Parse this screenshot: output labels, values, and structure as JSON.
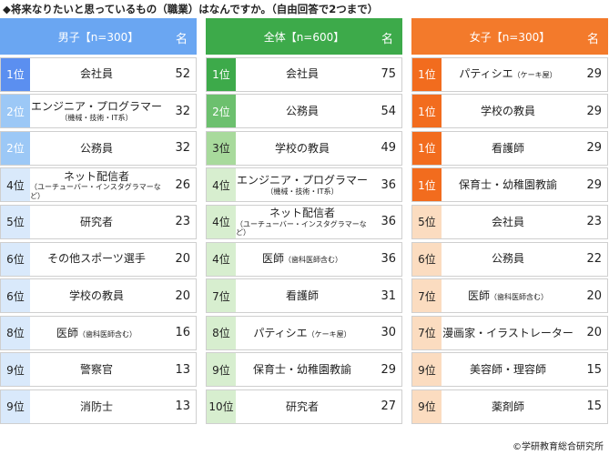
{
  "title": "◆将来なりたいと思っているもの（職業）はなんですか。（自由回答で2つまで）",
  "footer": "©学研教育総合研究所",
  "columns": [
    {
      "header": "男子【n=300】",
      "unit": "名",
      "header_color": "#6aa6f2",
      "rank_colors": [
        "#5b8ff0",
        "#9cc8f6",
        "#b9d9f8",
        "#d9e9fb"
      ],
      "rows": [
        {
          "rank": "1位",
          "name": "会社員",
          "count": 52
        },
        {
          "rank": "2位",
          "name": "エンジニア・プログラマー",
          "note": "（機械・技術・IT系）",
          "note_below": true,
          "count": 32
        },
        {
          "rank": "2位",
          "name": "公務員",
          "count": 32
        },
        {
          "rank": "4位",
          "name": "ネット配信者",
          "note": "（ユーチューバー・インスタグラマーなど）",
          "note_below": true,
          "count": 26
        },
        {
          "rank": "5位",
          "name": "研究者",
          "count": 23
        },
        {
          "rank": "6位",
          "name": "その他スポーツ選手",
          "count": 20
        },
        {
          "rank": "6位",
          "name": "学校の教員",
          "count": 20
        },
        {
          "rank": "8位",
          "name": "医師",
          "note": "（歯科医師含む）",
          "note_below": false,
          "count": 16
        },
        {
          "rank": "9位",
          "name": "警察官",
          "count": 13
        },
        {
          "rank": "9位",
          "name": "消防士",
          "count": 13
        }
      ]
    },
    {
      "header": "全体【n=600】",
      "unit": "名",
      "header_color": "#3daa4a",
      "rank_colors": [
        "#3daa4a",
        "#6cc06e",
        "#a8da9c",
        "#d7eecf"
      ],
      "rows": [
        {
          "rank": "1位",
          "name": "会社員",
          "count": 75
        },
        {
          "rank": "2位",
          "name": "公務員",
          "count": 54
        },
        {
          "rank": "3位",
          "name": "学校の教員",
          "count": 49
        },
        {
          "rank": "4位",
          "name": "エンジニア・プログラマー",
          "note": "（機械・技術・IT系）",
          "note_below": true,
          "count": 36
        },
        {
          "rank": "4位",
          "name": "ネット配信者",
          "note": "（ユーチューバー・インスタグラマーなど）",
          "note_below": true,
          "count": 36
        },
        {
          "rank": "4位",
          "name": "医師",
          "note": "（歯科医師含む）",
          "note_below": false,
          "count": 36
        },
        {
          "rank": "7位",
          "name": "看護師",
          "count": 31
        },
        {
          "rank": "8位",
          "name": "パティシエ",
          "note": "（ケーキ屋）",
          "note_below": false,
          "count": 30
        },
        {
          "rank": "9位",
          "name": "保育士・幼稚園教諭",
          "count": 29
        },
        {
          "rank": "10位",
          "name": "研究者",
          "count": 27
        }
      ]
    },
    {
      "header": "女子【n=300】",
      "unit": "名",
      "header_color": "#f37a2b",
      "rank_colors": [
        "#f26c1e",
        "#f7a76b",
        "#f9c79a",
        "#fbdcc0"
      ],
      "rows": [
        {
          "rank": "1位",
          "name": "パティシエ",
          "note": "（ケーキ屋）",
          "note_below": false,
          "count": 29
        },
        {
          "rank": "1位",
          "name": "学校の教員",
          "count": 29
        },
        {
          "rank": "1位",
          "name": "看護師",
          "count": 29
        },
        {
          "rank": "1位",
          "name": "保育士・幼稚園教諭",
          "count": 29
        },
        {
          "rank": "5位",
          "name": "会社員",
          "count": 23
        },
        {
          "rank": "6位",
          "name": "公務員",
          "count": 22
        },
        {
          "rank": "7位",
          "name": "医師",
          "note": "（歯科医師含む）",
          "note_below": false,
          "count": 20
        },
        {
          "rank": "7位",
          "name": "漫画家・イラストレーター",
          "count": 20
        },
        {
          "rank": "9位",
          "name": "美容師・理容師",
          "count": 15
        },
        {
          "rank": "9位",
          "name": "薬剤師",
          "count": 15
        }
      ]
    }
  ]
}
